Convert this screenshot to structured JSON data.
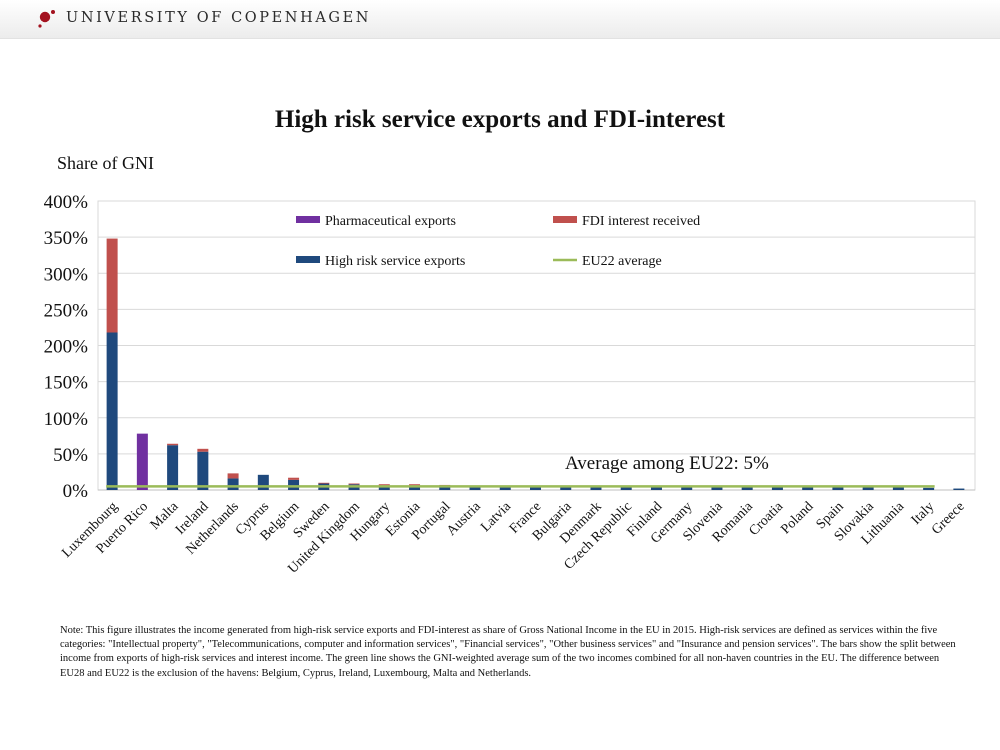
{
  "header": {
    "institution": "UNIVERSITY OF COPENHAGEN",
    "logo_icon": "university-seal-icon",
    "logo_color": "#a3121f"
  },
  "chart_data": {
    "type": "bar",
    "stacked": true,
    "title": "High risk service exports and FDI-interest",
    "ylabel": "Share of GNI",
    "xlabel": "",
    "ylim": [
      0,
      400
    ],
    "yticks": [
      0,
      50,
      100,
      150,
      200,
      250,
      300,
      350,
      400
    ],
    "ytick_labels": [
      "0%",
      "50%",
      "100%",
      "150%",
      "200%",
      "250%",
      "300%",
      "350%",
      "400%"
    ],
    "grid": true,
    "legend_position": "top",
    "categories": [
      "Luxembourg",
      "Puerto Rico",
      "Malta",
      "Ireland",
      "Netherlands",
      "Cyprus",
      "Belgium",
      "Sweden",
      "United Kingdom",
      "Hungary",
      "Estonia",
      "Portugal",
      "Austria",
      "Latvia",
      "France",
      "Bulgaria",
      "Denmark",
      "Czech Republic",
      "Finland",
      "Germany",
      "Slovenia",
      "Romania",
      "Croatia",
      "Poland",
      "Spain",
      "Slovakia",
      "Lithuania",
      "Italy",
      "Greece"
    ],
    "series": [
      {
        "name": "High risk service exports",
        "color": "#1f497d",
        "values": [
          218,
          0,
          62,
          53,
          16,
          21,
          14,
          9,
          8,
          6,
          6,
          5,
          5,
          5,
          5,
          5,
          5,
          5,
          5,
          5,
          5,
          4,
          4,
          4,
          4,
          4,
          4,
          3,
          2
        ]
      },
      {
        "name": "FDI interest received",
        "color": "#c0504d",
        "values": [
          130,
          0,
          2,
          4,
          7,
          0,
          3,
          1,
          1,
          2,
          2,
          2,
          1,
          0,
          0,
          0,
          1,
          0,
          0,
          0,
          0,
          0,
          0,
          0,
          0,
          0,
          1,
          0,
          0
        ]
      },
      {
        "name": "Pharmaceutical exports",
        "color": "#7030a0",
        "values": [
          0,
          78,
          0,
          0,
          0,
          0,
          0,
          0,
          0,
          0,
          0,
          0,
          0,
          0,
          0,
          0,
          0,
          0,
          0,
          0,
          0,
          0,
          0,
          0,
          0,
          0,
          0,
          0,
          0
        ]
      }
    ],
    "average_line": {
      "name": "EU22 average",
      "value": 5,
      "color": "#9bbb59"
    },
    "legend": [
      {
        "label": "Pharmaceutical exports",
        "color": "#7030a0",
        "kind": "box"
      },
      {
        "label": "FDI interest received",
        "color": "#c0504d",
        "kind": "box"
      },
      {
        "label": "High risk service exports",
        "color": "#1f497d",
        "kind": "box"
      },
      {
        "label": "EU22 average",
        "color": "#9bbb59",
        "kind": "line"
      }
    ],
    "annotation": "Average among EU22:  5%"
  },
  "note": "Note:  This figure illustrates the income generated from high-risk service exports and FDI-interest as share of Gross National Income in the EU in 2015. High-risk services are defined as services within the five  categories: \"Intellectual property\", \"Telecommunications, computer and information services\", \"Financial services\", \"Other business services\" and \"Insurance and pension services\". The bars show the split between income from exports of high-risk services and interest income. The green line shows the GNI-weighted average sum of the two incomes combined for all non-haven countries in the EU. The difference between EU28 and EU22 is the exclusion of the havens: Belgium, Cyprus, Ireland, Luxembourg, Malta and Netherlands."
}
